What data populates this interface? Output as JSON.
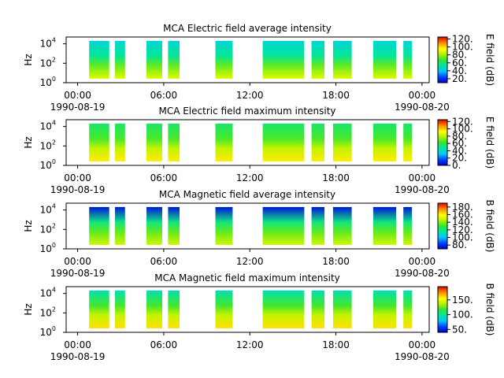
{
  "chart_data": [
    {
      "type": "heatmap",
      "title": "MCA  Electric field average intensity",
      "ylabel": "Hz",
      "colorbar_label": "E field (dB)",
      "colorbar_ticks": [
        "20.",
        "40.",
        "60.",
        "80.",
        "100.",
        "120."
      ],
      "colorbar_range": [
        10,
        125
      ],
      "y_ticks": [
        {
          "base": "10",
          "exp": "0"
        },
        {
          "base": "10",
          "exp": "2"
        },
        {
          "base": "10",
          "exp": "4"
        }
      ],
      "x_ticks": [
        "00:00",
        "06:00",
        "12:00",
        "18:00",
        "00:00"
      ],
      "x_dates": [
        "1990-08-19",
        "1990-08-20"
      ],
      "levels": {
        "low_freq": 90,
        "mid_freq": 55,
        "high_freq": 45
      }
    },
    {
      "type": "heatmap",
      "title": "MCA  Electric field maximum intensity",
      "ylabel": "Hz",
      "colorbar_label": "E field (dB)",
      "colorbar_ticks": [
        "0.",
        "20.",
        "40.",
        "60.",
        "80.",
        "100.",
        "120."
      ],
      "colorbar_range": [
        0,
        125
      ],
      "y_ticks": [
        {
          "base": "10",
          "exp": "0"
        },
        {
          "base": "10",
          "exp": "2"
        },
        {
          "base": "10",
          "exp": "4"
        }
      ],
      "x_ticks": [
        "00:00",
        "06:00",
        "12:00",
        "18:00",
        "00:00"
      ],
      "x_dates": [
        "1990-08-19",
        "1990-08-20"
      ],
      "levels": {
        "low_freq": 95,
        "mid_freq": 65,
        "high_freq": 55
      }
    },
    {
      "type": "heatmap",
      "title": "MCA  Magnetic field average intensity",
      "ylabel": "Hz",
      "colorbar_label": "B field (dB)",
      "colorbar_ticks": [
        "80.",
        "100.",
        "120.",
        "140.",
        "160.",
        "180."
      ],
      "colorbar_range": [
        70,
        190
      ],
      "y_ticks": [
        {
          "base": "10",
          "exp": "0"
        },
        {
          "base": "10",
          "exp": "2"
        },
        {
          "base": "10",
          "exp": "4"
        }
      ],
      "x_ticks": [
        "00:00",
        "06:00",
        "12:00",
        "18:00",
        "00:00"
      ],
      "x_dates": [
        "1990-08-19",
        "1990-08-20"
      ],
      "levels": {
        "low_freq": 150,
        "mid_freq": 120,
        "high_freq": 75
      }
    },
    {
      "type": "heatmap",
      "title": "MCA  Magnetic field maximum intensity",
      "ylabel": "Hz",
      "colorbar_label": "B field (dB)",
      "colorbar_ticks": [
        "50.",
        "100.",
        "150."
      ],
      "colorbar_range": [
        40,
        195
      ],
      "y_ticks": [
        {
          "base": "10",
          "exp": "0"
        },
        {
          "base": "10",
          "exp": "2"
        },
        {
          "base": "10",
          "exp": "4"
        }
      ],
      "x_ticks": [
        "00:00",
        "06:00",
        "12:00",
        "18:00",
        "00:00"
      ],
      "x_dates": [
        "1990-08-19",
        "1990-08-20"
      ],
      "levels": {
        "low_freq": 160,
        "mid_freq": 120,
        "high_freq": 95
      }
    }
  ],
  "data_segments_hours": [
    [
      0.8,
      2.2
    ],
    [
      2.6,
      3.3
    ],
    [
      4.8,
      5.9
    ],
    [
      6.3,
      7.1
    ],
    [
      9.6,
      10.8
    ],
    [
      12.9,
      15.8
    ],
    [
      16.3,
      17.2
    ],
    [
      17.8,
      19.1
    ],
    [
      20.6,
      22.2
    ],
    [
      22.7,
      23.3
    ]
  ],
  "x_range_hours": [
    -0.8,
    24.5
  ]
}
